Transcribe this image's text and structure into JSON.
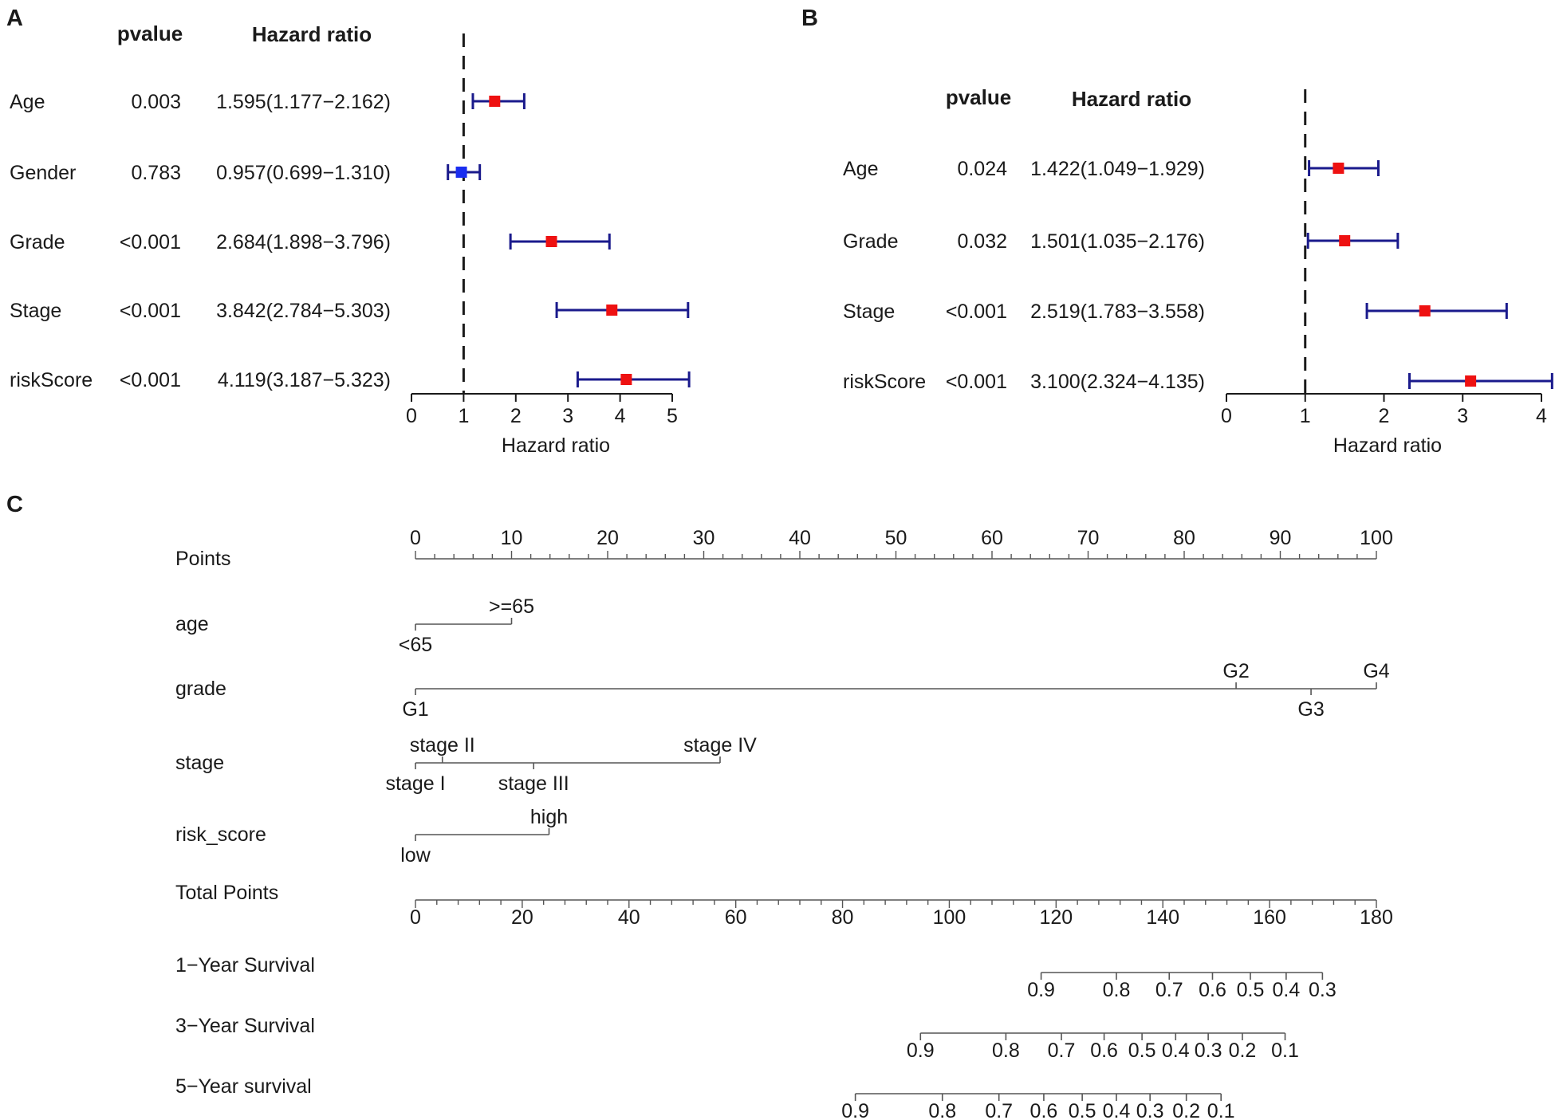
{
  "panels": {
    "A": {
      "letter": "A",
      "pvalue_header": "pvalue",
      "hr_header": "Hazard ratio"
    },
    "B": {
      "letter": "B",
      "pvalue_header": "pvalue",
      "hr_header": "Hazard ratio"
    },
    "C": {
      "letter": "C"
    }
  },
  "colors": {
    "ci_line": "#1a1a8c",
    "point_significant": "#ee1111",
    "point_nonsignificant": "#1a2ef0",
    "axis": "#1a1a1a",
    "nomogram_line": "#555555"
  },
  "chart_data": [
    {
      "id": "A",
      "type": "forest",
      "title": "",
      "xlabel": "Hazard ratio",
      "xlim": [
        0,
        5
      ],
      "xticks": [
        0,
        1,
        2,
        3,
        4,
        5
      ],
      "reference_line": 1,
      "rows": [
        {
          "label": "Age",
          "pvalue": "0.003",
          "hr_text": "1.595(1.177−2.162)",
          "hr": 1.595,
          "lo": 1.177,
          "hi": 2.162,
          "significant": true
        },
        {
          "label": "Gender",
          "pvalue": "0.783",
          "hr_text": "0.957(0.699−1.310)",
          "hr": 0.957,
          "lo": 0.699,
          "hi": 1.31,
          "significant": false
        },
        {
          "label": "Grade",
          "pvalue": "<0.001",
          "hr_text": "2.684(1.898−3.796)",
          "hr": 2.684,
          "lo": 1.898,
          "hi": 3.796,
          "significant": true
        },
        {
          "label": "Stage",
          "pvalue": "<0.001",
          "hr_text": "3.842(2.784−5.303)",
          "hr": 3.842,
          "lo": 2.784,
          "hi": 5.303,
          "significant": true
        },
        {
          "label": "riskScore",
          "pvalue": "<0.001",
          "hr_text": "4.119(3.187−5.323)",
          "hr": 4.119,
          "lo": 3.187,
          "hi": 5.323,
          "significant": true
        }
      ]
    },
    {
      "id": "B",
      "type": "forest",
      "title": "",
      "xlabel": "Hazard ratio",
      "xlim": [
        0,
        4
      ],
      "xticks": [
        0,
        1,
        2,
        3,
        4
      ],
      "reference_line": 1,
      "rows": [
        {
          "label": "Age",
          "pvalue": "0.024",
          "hr_text": "1.422(1.049−1.929)",
          "hr": 1.422,
          "lo": 1.049,
          "hi": 1.929,
          "significant": true
        },
        {
          "label": "Grade",
          "pvalue": "0.032",
          "hr_text": "1.501(1.035−2.176)",
          "hr": 1.501,
          "lo": 1.035,
          "hi": 2.176,
          "significant": true
        },
        {
          "label": "Stage",
          "pvalue": "<0.001",
          "hr_text": "2.519(1.783−3.558)",
          "hr": 2.519,
          "lo": 1.783,
          "hi": 3.558,
          "significant": true
        },
        {
          "label": "riskScore",
          "pvalue": "<0.001",
          "hr_text": "3.100(2.324−4.135)",
          "hr": 3.1,
          "lo": 2.324,
          "hi": 4.135,
          "significant": true
        }
      ]
    },
    {
      "id": "C",
      "type": "nomogram",
      "points_scale": {
        "label": "Points",
        "min": 0,
        "max": 100,
        "major_step": 10,
        "minor_step": 2
      },
      "variables": [
        {
          "label": "age",
          "levels": [
            {
              "name": "<65",
              "points": 0,
              "side": "below"
            },
            {
              "name": ">=65",
              "points": 10,
              "side": "above"
            }
          ]
        },
        {
          "label": "grade",
          "levels": [
            {
              "name": "G1",
              "points": 0,
              "side": "below"
            },
            {
              "name": "G2",
              "points": 85.4,
              "side": "above"
            },
            {
              "name": "G3",
              "points": 93.2,
              "side": "below"
            },
            {
              "name": "G4",
              "points": 100,
              "side": "above"
            }
          ]
        },
        {
          "label": "stage",
          "levels": [
            {
              "name": "stage I",
              "points": 0,
              "side": "below"
            },
            {
              "name": "stage II",
              "points": 2.8,
              "side": "above"
            },
            {
              "name": "stage III",
              "points": 12.3,
              "side": "below"
            },
            {
              "name": "stage IV",
              "points": 31.7,
              "side": "above"
            }
          ]
        },
        {
          "label": "risk_score",
          "levels": [
            {
              "name": "low",
              "points": 0,
              "side": "below"
            },
            {
              "name": "high",
              "points": 13.9,
              "side": "above"
            }
          ]
        }
      ],
      "total_points": {
        "label": "Total Points",
        "min": 0,
        "max": 180,
        "major_step": 20,
        "minor_step": 4
      },
      "survival": [
        {
          "label": "1−Year Survival",
          "ticks": [
            {
              "v": "0.9",
              "total": 117.2
            },
            {
              "v": "0.8",
              "total": 131.3
            },
            {
              "v": "0.7",
              "total": 141.2
            },
            {
              "v": "0.6",
              "total": 149.3
            },
            {
              "v": "0.5",
              "total": 156.4
            },
            {
              "v": "0.4",
              "total": 163.1
            },
            {
              "v": "0.3",
              "total": 169.9
            }
          ]
        },
        {
          "label": "3−Year Survival",
          "ticks": [
            {
              "v": "0.9",
              "total": 94.6
            },
            {
              "v": "0.8",
              "total": 110.6
            },
            {
              "v": "0.7",
              "total": 121.0
            },
            {
              "v": "0.6",
              "total": 129.0
            },
            {
              "v": "0.5",
              "total": 136.1
            },
            {
              "v": "0.4",
              "total": 142.4
            },
            {
              "v": "0.3",
              "total": 148.5
            },
            {
              "v": "0.2",
              "total": 154.9
            },
            {
              "v": "0.1",
              "total": 162.9
            }
          ]
        },
        {
          "label": "5−Year survival",
          "ticks": [
            {
              "v": "0.9",
              "total": 82.4
            },
            {
              "v": "0.8",
              "total": 98.7
            },
            {
              "v": "0.7",
              "total": 109.3
            },
            {
              "v": "0.6",
              "total": 117.7
            },
            {
              "v": "0.5",
              "total": 124.9
            },
            {
              "v": "0.4",
              "total": 131.3
            },
            {
              "v": "0.3",
              "total": 137.6
            },
            {
              "v": "0.2",
              "total": 144.4
            },
            {
              "v": "0.1",
              "total": 150.9
            }
          ]
        }
      ]
    }
  ]
}
